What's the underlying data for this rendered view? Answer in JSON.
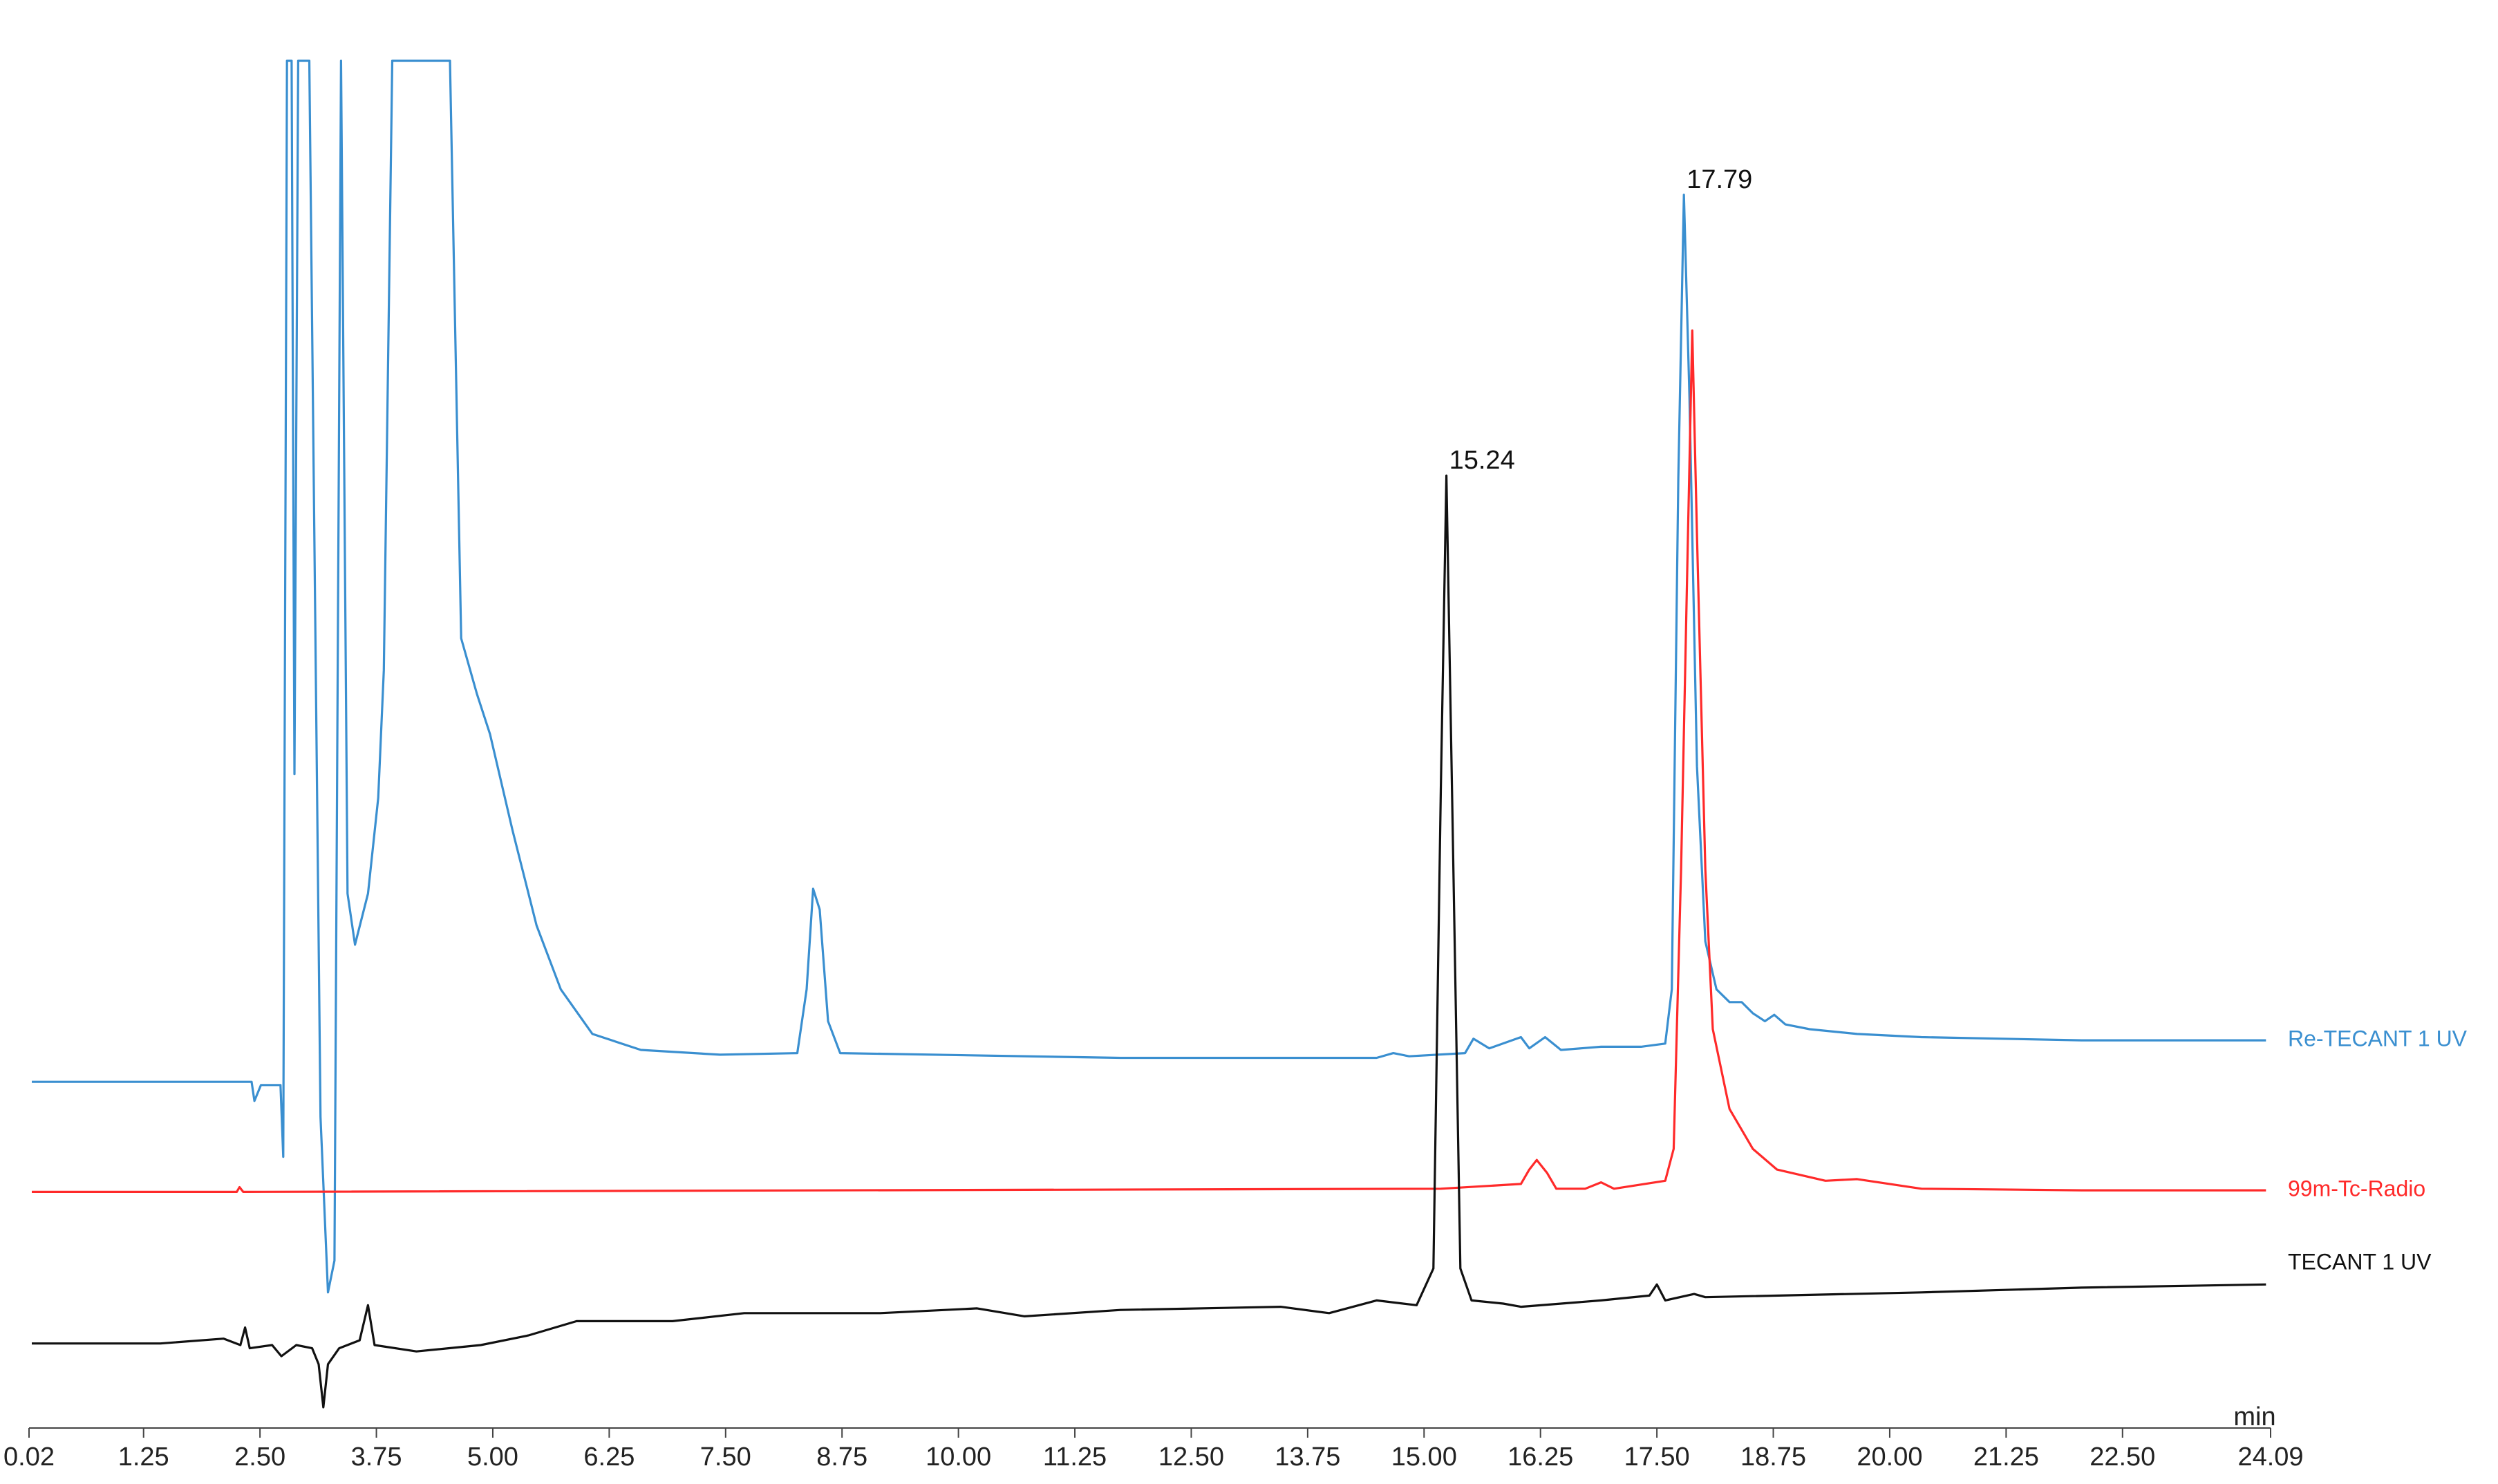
{
  "chart_data": {
    "type": "line",
    "x_label": "min",
    "xlim": [
      0.02,
      24.09
    ],
    "xticks": [
      0.02,
      1.25,
      {
        "value": 2.5,
        "label": "2.50"
      },
      3.75,
      {
        "value": 5,
        "label": "5.00"
      },
      6.25,
      {
        "value": 7.5,
        "label": "7.50"
      },
      8.75,
      {
        "value": 10,
        "label": "10.00"
      },
      11.25,
      {
        "value": 12.5,
        "label": "12.50"
      },
      13.75,
      {
        "value": 15,
        "label": "15.00"
      },
      16.25,
      {
        "value": 17.5,
        "label": "17.50"
      },
      18.75,
      {
        "value": 20,
        "label": "20.00"
      },
      21.25,
      {
        "value": 22.5,
        "label": "22.50"
      },
      24.09
    ],
    "ylim": [
      0,
      857
    ],
    "series": [
      {
        "name": "Re-TECANT  1 UV",
        "color": "#3a8fd0",
        "x": [
          0.05,
          2.41,
          2.44,
          2.51,
          2.72,
          2.75,
          2.79,
          2.84,
          2.87,
          2.91,
          3.03,
          3.15,
          3.23,
          3.3,
          3.37,
          3.44,
          3.52,
          3.66,
          3.77,
          3.83,
          3.92,
          4.54,
          4.66,
          4.83,
          4.97,
          5.21,
          5.47,
          5.73,
          6.07,
          6.59,
          7.44,
          8.27,
          8.37,
          8.44,
          8.51,
          8.6,
          8.73,
          11.74,
          14.49,
          14.67,
          14.84,
          15.44,
          15.53,
          15.7,
          16.04,
          16.13,
          16.3,
          16.47,
          16.9,
          17.33,
          17.59,
          17.66,
          17.73,
          17.79,
          17.85,
          17.93,
          18.02,
          18.14,
          18.28,
          18.41,
          18.53,
          18.66,
          18.76,
          18.88,
          19.14,
          19.65,
          20.34,
          22.06,
          24.04
        ],
        "values": [
          217,
          217,
          205,
          215,
          215,
          170,
          857,
          857,
          410,
          857,
          857,
          195,
          85,
          105,
          857,
          335,
          303,
          335,
          395,
          475,
          857,
          857,
          495,
          460,
          435,
          375,
          315,
          275,
          247,
          237,
          234,
          235,
          275,
          338,
          325,
          255,
          235,
          232,
          232,
          235,
          233,
          235,
          244,
          238,
          245,
          238,
          245,
          237,
          239,
          239,
          241,
          275,
          595,
          773,
          645,
          415,
          305,
          275,
          267,
          267,
          260,
          255,
          259,
          253,
          250,
          247,
          245,
          243,
          243
        ]
      },
      {
        "name": "99m-Tc-Radio",
        "color": "#ff2a2a",
        "x": [
          0.05,
          2.25,
          2.28,
          2.32,
          15.18,
          16.04,
          16.13,
          16.21,
          16.32,
          16.42,
          16.73,
          16.9,
          17.04,
          17.59,
          17.68,
          17.76,
          17.83,
          17.88,
          17.93,
          18.02,
          18.1,
          18.28,
          18.53,
          18.79,
          19.31,
          19.65,
          20.34,
          22.06,
          24.04
        ],
        "values": [
          148,
          148,
          151,
          148,
          150,
          153,
          162,
          168,
          160,
          150,
          150,
          154,
          150,
          155,
          175,
          350,
          550,
          688,
          560,
          350,
          250,
          200,
          175,
          162,
          155,
          156,
          150,
          149,
          149
        ]
      },
      {
        "name": "TECANT  1 UV",
        "color": "#111111",
        "x": [
          0.05,
          1.43,
          2.11,
          2.29,
          2.34,
          2.39,
          2.63,
          2.73,
          2.89,
          3.06,
          3.13,
          3.18,
          3.23,
          3.35,
          3.57,
          3.66,
          3.73,
          4.18,
          4.87,
          5.38,
          5.9,
          6.93,
          7.7,
          9.16,
          10.2,
          10.71,
          11.74,
          13.46,
          13.98,
          14.49,
          14.92,
          15.1,
          15.18,
          15.24,
          15.3,
          15.39,
          15.51,
          15.85,
          16.04,
          16.9,
          17.42,
          17.5,
          17.59,
          17.9,
          18.02,
          20.34,
          22.06,
          24.04
        ],
        "values": [
          53,
          53,
          56,
          52,
          63,
          50,
          52,
          45,
          52,
          50,
          40,
          13,
          40,
          50,
          55,
          77,
          52,
          48,
          52,
          58,
          67,
          67,
          72,
          72,
          75,
          70,
          74,
          76,
          72,
          80,
          77,
          100,
          400,
          597,
          400,
          100,
          80,
          78,
          76,
          80,
          83,
          90,
          80,
          84,
          82,
          85,
          88,
          90
        ]
      }
    ],
    "annotations": [
      {
        "x": 15.24,
        "y": 597
      },
      {
        "x": 17.79,
        "y": 773
      }
    ]
  }
}
